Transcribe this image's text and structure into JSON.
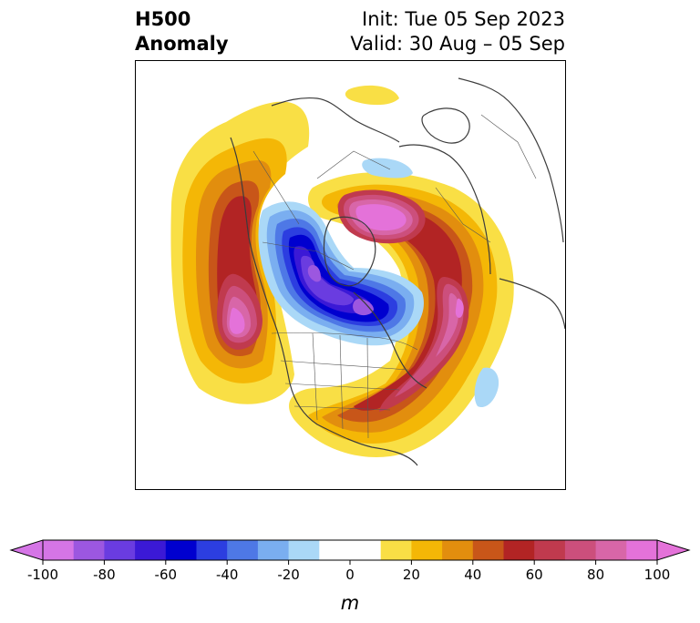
{
  "title": {
    "line1": "H500",
    "line2": "Anomaly",
    "init": "Init: Tue 05 Sep 2023",
    "valid": "Valid: 30 Aug – 05 Sep"
  },
  "colorbar": {
    "unit": "m",
    "min": -100,
    "max": 100,
    "step": 10,
    "ticks": [
      "-100",
      "-80",
      "-60",
      "-40",
      "-20",
      "0",
      "20",
      "40",
      "60",
      "80",
      "100"
    ],
    "colors": [
      "#d575e6",
      "#9c57e0",
      "#6a3ce0",
      "#3b19d6",
      "#0000cf",
      "#2c3ee0",
      "#4e78e6",
      "#7aaef0",
      "#aad8f7",
      "#ffffff",
      "#ffffff",
      "#f9df45",
      "#f4b706",
      "#e28e0e",
      "#c85619",
      "#b22424",
      "#c03a4e",
      "#cc4f7c",
      "#d866a8",
      "#e472d9"
    ]
  },
  "map": {
    "projection": "polar stereographic",
    "region": "North America",
    "features": [
      {
        "kind": "positive",
        "name": "western-ridge",
        "peak_m": 90
      },
      {
        "kind": "positive",
        "name": "greenland-ridge",
        "peak_m": 90
      },
      {
        "kind": "positive",
        "name": "eastern-ridge",
        "peak_m": 80
      },
      {
        "kind": "negative",
        "name": "arctic-trough",
        "peak_m": -80
      },
      {
        "kind": "negative",
        "name": "hudson-trough",
        "peak_m": -80
      },
      {
        "kind": "negative",
        "name": "atlantic-trough",
        "peak_m": -20
      },
      {
        "kind": "negative",
        "name": "arctic-weak-low",
        "peak_m": -20
      }
    ]
  }
}
